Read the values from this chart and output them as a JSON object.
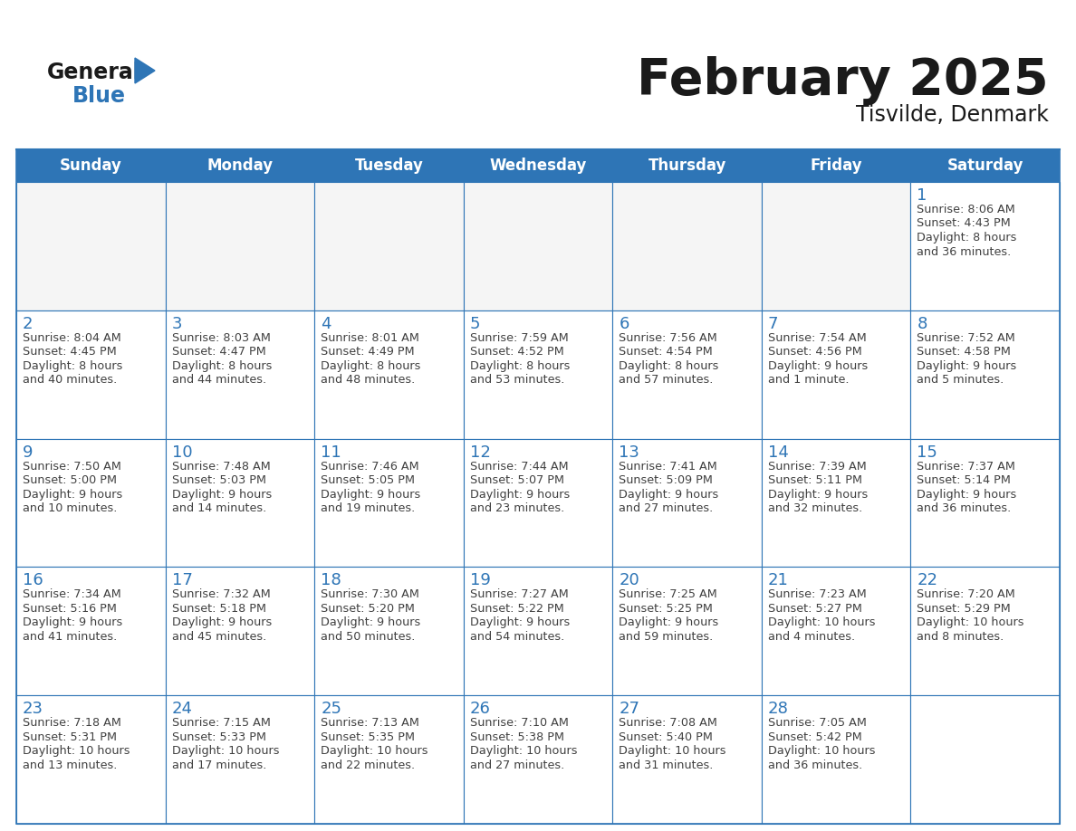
{
  "title": "February 2025",
  "subtitle": "Tisvilde, Denmark",
  "days_of_week": [
    "Sunday",
    "Monday",
    "Tuesday",
    "Wednesday",
    "Thursday",
    "Friday",
    "Saturday"
  ],
  "header_bg": "#2E75B6",
  "header_text": "#FFFFFF",
  "border_color": "#2E75B6",
  "day_number_color": "#2E75B6",
  "text_color": "#404040",
  "logo_general_color": "#1a1a1a",
  "logo_blue_color": "#2E75B6",
  "title_color": "#1a1a1a",
  "weeks": [
    [
      {
        "day": null,
        "info": ""
      },
      {
        "day": null,
        "info": ""
      },
      {
        "day": null,
        "info": ""
      },
      {
        "day": null,
        "info": ""
      },
      {
        "day": null,
        "info": ""
      },
      {
        "day": null,
        "info": ""
      },
      {
        "day": 1,
        "info": "Sunrise: 8:06 AM\nSunset: 4:43 PM\nDaylight: 8 hours\nand 36 minutes."
      }
    ],
    [
      {
        "day": 2,
        "info": "Sunrise: 8:04 AM\nSunset: 4:45 PM\nDaylight: 8 hours\nand 40 minutes."
      },
      {
        "day": 3,
        "info": "Sunrise: 8:03 AM\nSunset: 4:47 PM\nDaylight: 8 hours\nand 44 minutes."
      },
      {
        "day": 4,
        "info": "Sunrise: 8:01 AM\nSunset: 4:49 PM\nDaylight: 8 hours\nand 48 minutes."
      },
      {
        "day": 5,
        "info": "Sunrise: 7:59 AM\nSunset: 4:52 PM\nDaylight: 8 hours\nand 53 minutes."
      },
      {
        "day": 6,
        "info": "Sunrise: 7:56 AM\nSunset: 4:54 PM\nDaylight: 8 hours\nand 57 minutes."
      },
      {
        "day": 7,
        "info": "Sunrise: 7:54 AM\nSunset: 4:56 PM\nDaylight: 9 hours\nand 1 minute."
      },
      {
        "day": 8,
        "info": "Sunrise: 7:52 AM\nSunset: 4:58 PM\nDaylight: 9 hours\nand 5 minutes."
      }
    ],
    [
      {
        "day": 9,
        "info": "Sunrise: 7:50 AM\nSunset: 5:00 PM\nDaylight: 9 hours\nand 10 minutes."
      },
      {
        "day": 10,
        "info": "Sunrise: 7:48 AM\nSunset: 5:03 PM\nDaylight: 9 hours\nand 14 minutes."
      },
      {
        "day": 11,
        "info": "Sunrise: 7:46 AM\nSunset: 5:05 PM\nDaylight: 9 hours\nand 19 minutes."
      },
      {
        "day": 12,
        "info": "Sunrise: 7:44 AM\nSunset: 5:07 PM\nDaylight: 9 hours\nand 23 minutes."
      },
      {
        "day": 13,
        "info": "Sunrise: 7:41 AM\nSunset: 5:09 PM\nDaylight: 9 hours\nand 27 minutes."
      },
      {
        "day": 14,
        "info": "Sunrise: 7:39 AM\nSunset: 5:11 PM\nDaylight: 9 hours\nand 32 minutes."
      },
      {
        "day": 15,
        "info": "Sunrise: 7:37 AM\nSunset: 5:14 PM\nDaylight: 9 hours\nand 36 minutes."
      }
    ],
    [
      {
        "day": 16,
        "info": "Sunrise: 7:34 AM\nSunset: 5:16 PM\nDaylight: 9 hours\nand 41 minutes."
      },
      {
        "day": 17,
        "info": "Sunrise: 7:32 AM\nSunset: 5:18 PM\nDaylight: 9 hours\nand 45 minutes."
      },
      {
        "day": 18,
        "info": "Sunrise: 7:30 AM\nSunset: 5:20 PM\nDaylight: 9 hours\nand 50 minutes."
      },
      {
        "day": 19,
        "info": "Sunrise: 7:27 AM\nSunset: 5:22 PM\nDaylight: 9 hours\nand 54 minutes."
      },
      {
        "day": 20,
        "info": "Sunrise: 7:25 AM\nSunset: 5:25 PM\nDaylight: 9 hours\nand 59 minutes."
      },
      {
        "day": 21,
        "info": "Sunrise: 7:23 AM\nSunset: 5:27 PM\nDaylight: 10 hours\nand 4 minutes."
      },
      {
        "day": 22,
        "info": "Sunrise: 7:20 AM\nSunset: 5:29 PM\nDaylight: 10 hours\nand 8 minutes."
      }
    ],
    [
      {
        "day": 23,
        "info": "Sunrise: 7:18 AM\nSunset: 5:31 PM\nDaylight: 10 hours\nand 13 minutes."
      },
      {
        "day": 24,
        "info": "Sunrise: 7:15 AM\nSunset: 5:33 PM\nDaylight: 10 hours\nand 17 minutes."
      },
      {
        "day": 25,
        "info": "Sunrise: 7:13 AM\nSunset: 5:35 PM\nDaylight: 10 hours\nand 22 minutes."
      },
      {
        "day": 26,
        "info": "Sunrise: 7:10 AM\nSunset: 5:38 PM\nDaylight: 10 hours\nand 27 minutes."
      },
      {
        "day": 27,
        "info": "Sunrise: 7:08 AM\nSunset: 5:40 PM\nDaylight: 10 hours\nand 31 minutes."
      },
      {
        "day": 28,
        "info": "Sunrise: 7:05 AM\nSunset: 5:42 PM\nDaylight: 10 hours\nand 36 minutes."
      },
      {
        "day": null,
        "info": ""
      }
    ]
  ]
}
